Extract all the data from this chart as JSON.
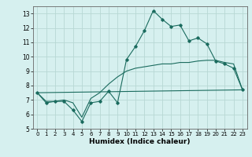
{
  "title": "",
  "xlabel": "Humidex (Indice chaleur)",
  "ylabel": "",
  "background_color": "#d6f0ef",
  "grid_color": "#b8d8d4",
  "line_color": "#1a6b5e",
  "xlim": [
    -0.5,
    23.5
  ],
  "ylim": [
    5,
    13.5
  ],
  "yticks": [
    5,
    6,
    7,
    8,
    9,
    10,
    11,
    12,
    13
  ],
  "xticks": [
    0,
    1,
    2,
    3,
    4,
    5,
    6,
    7,
    8,
    9,
    10,
    11,
    12,
    13,
    14,
    15,
    16,
    17,
    18,
    19,
    20,
    21,
    22,
    23
  ],
  "line1_x": [
    0,
    1,
    2,
    3,
    4,
    5,
    6,
    7,
    8,
    9,
    10,
    11,
    12,
    13,
    14,
    15,
    16,
    17,
    18,
    19,
    20,
    21,
    22,
    23
  ],
  "line1_y": [
    7.5,
    6.8,
    6.9,
    6.9,
    6.3,
    5.5,
    6.8,
    6.9,
    7.6,
    6.8,
    9.8,
    10.7,
    11.8,
    13.2,
    12.6,
    12.1,
    12.2,
    11.1,
    11.3,
    10.9,
    9.7,
    9.5,
    9.2,
    7.7
  ],
  "line2_x": [
    0,
    23
  ],
  "line2_y": [
    7.5,
    7.7
  ],
  "line3_x": [
    0,
    1,
    2,
    3,
    4,
    5,
    6,
    7,
    8,
    9,
    10,
    11,
    12,
    13,
    14,
    15,
    16,
    17,
    18,
    19,
    20,
    21,
    22,
    23
  ],
  "line3_y": [
    7.5,
    6.9,
    6.9,
    7.0,
    6.8,
    5.8,
    7.1,
    7.5,
    8.1,
    8.6,
    9.0,
    9.2,
    9.3,
    9.4,
    9.5,
    9.5,
    9.6,
    9.6,
    9.7,
    9.75,
    9.75,
    9.6,
    9.5,
    7.7
  ]
}
